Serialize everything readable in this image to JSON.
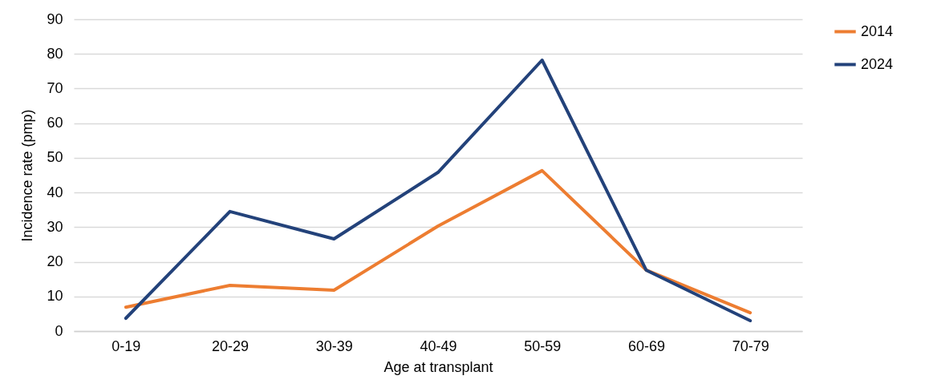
{
  "chart_data": {
    "type": "line",
    "xlabel": "Age at transplant",
    "ylabel": "Incidence rate (pmp)",
    "categories": [
      "0-19",
      "20-29",
      "30-39",
      "40-49",
      "50-59",
      "60-69",
      "70-79"
    ],
    "series": [
      {
        "name": "2014",
        "color": "#ed7d31",
        "values": [
          6.9,
          13.2,
          11.8,
          30.3,
          46.3,
          17.6,
          5.3
        ]
      },
      {
        "name": "2024",
        "color": "#23427a",
        "values": [
          3.7,
          34.5,
          26.6,
          45.8,
          78.2,
          17.6,
          3.0
        ]
      }
    ],
    "ylim": [
      0,
      90
    ],
    "yticks": [
      0,
      10,
      20,
      30,
      40,
      50,
      60,
      70,
      80,
      90
    ],
    "grid": "y",
    "legend": "right",
    "line_style": "solid",
    "marker": "none"
  }
}
